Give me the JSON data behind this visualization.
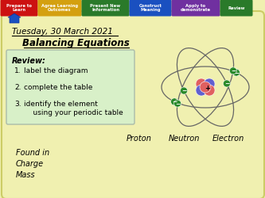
{
  "bg_color": "#f0f0b0",
  "date_text": "Tuesday, 30 March 2021",
  "title_text": "Balancing Equations",
  "review_box_color": "#d8f0c8",
  "review_label": "Review:",
  "review_items": [
    "label the diagram",
    "complete the table",
    "identify the element\n    using your periodic table"
  ],
  "table_headers": [
    "Proton",
    "Neutron",
    "Electron"
  ],
  "table_rows": [
    "Found in",
    "Charge",
    "Mass"
  ],
  "nav_tabs": [
    {
      "label": "Prepare to\nLearn",
      "color": "#cc1111"
    },
    {
      "label": "Agree Learning\nOutcomes",
      "color": "#d4a010"
    },
    {
      "label": "Present New\nInformation",
      "color": "#2a7a2a"
    },
    {
      "label": "Construct\nMeaning",
      "color": "#1a50c0"
    },
    {
      "label": "Apply to\ndemonstrate",
      "color": "#7030a0"
    },
    {
      "label": "Review",
      "color": "#2a7a2a"
    }
  ],
  "nav_tab_widths": [
    44,
    52,
    57,
    50,
    58,
    38
  ],
  "home_arrow_color": "#1a50c0",
  "orbit_color": "#666666",
  "electron_color": "#2a8a2a",
  "proton_color": "#e06060",
  "neutron_color": "#6060d0",
  "main_border_color": "#cccc66"
}
